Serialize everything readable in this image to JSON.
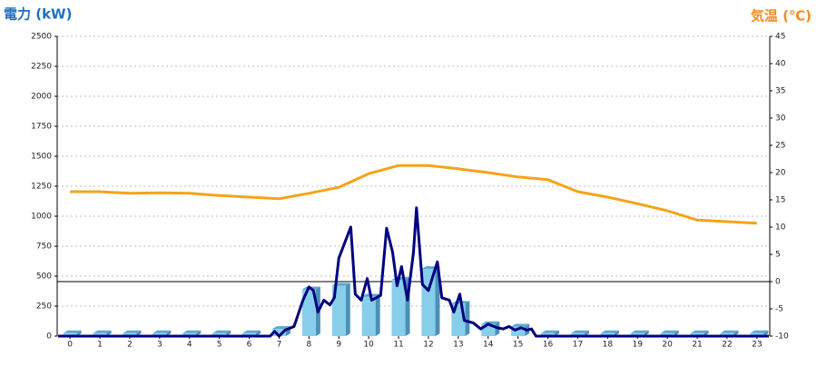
{
  "chart_data": {
    "type": "bar_line",
    "title": "電力 (kW)",
    "y2_title": "気温 (℃)",
    "x": [
      0,
      1,
      2,
      3,
      4,
      5,
      6,
      7,
      8,
      9,
      10,
      11,
      12,
      13,
      14,
      15,
      16,
      17,
      18,
      19,
      20,
      21,
      22,
      23
    ],
    "xlim": [
      -0.43,
      23.43
    ],
    "xticks": [
      0,
      1,
      2,
      3,
      4,
      5,
      6,
      7,
      8,
      9,
      10,
      11,
      12,
      13,
      14,
      15,
      16,
      17,
      18,
      19,
      20,
      21,
      22,
      23
    ],
    "ylim": [
      0,
      2500
    ],
    "yticks": [
      0,
      250,
      500,
      750,
      1000,
      1250,
      1500,
      1750,
      2000,
      2250,
      2500
    ],
    "y2lim": [
      -10,
      45
    ],
    "y2ticks": [
      -10,
      -5,
      0,
      5,
      10,
      15,
      20,
      25,
      30,
      35,
      40,
      45
    ],
    "grid": true,
    "series": [
      {
        "kind": "bar",
        "color": "#87ceeb",
        "values": [
          25,
          25,
          25,
          25,
          25,
          25,
          25,
          60,
          390,
          420,
          330,
          470,
          560,
          270,
          100,
          80,
          25,
          25,
          25,
          25,
          25,
          25,
          25,
          25
        ]
      },
      {
        "kind": "line",
        "color": "#000080",
        "x": [
          -0.4,
          6.7,
          6.85,
          7.0,
          7.2,
          7.5,
          7.8,
          8.0,
          8.15,
          8.3,
          8.5,
          8.7,
          8.85,
          9.0,
          9.2,
          9.4,
          9.55,
          9.75,
          9.95,
          10.1,
          10.4,
          10.6,
          10.8,
          10.95,
          11.1,
          11.3,
          11.5,
          11.6,
          11.8,
          12.0,
          12.3,
          12.45,
          12.7,
          12.85,
          13.05,
          13.2,
          13.5,
          13.75,
          14.0,
          14.3,
          14.5,
          14.7,
          14.9,
          15.1,
          15.3,
          15.45,
          15.6,
          23.4
        ],
        "values": [
          0,
          0,
          40,
          0,
          50,
          80,
          300,
          410,
          380,
          200,
          300,
          260,
          320,
          650,
          780,
          910,
          350,
          300,
          480,
          300,
          340,
          900,
          700,
          420,
          580,
          300,
          700,
          1070,
          430,
          380,
          620,
          320,
          300,
          200,
          350,
          130,
          110,
          60,
          100,
          70,
          60,
          80,
          50,
          70,
          50,
          60,
          0,
          0
        ]
      },
      {
        "kind": "line",
        "axis": "y2",
        "color": "#f5a31a",
        "values": [
          16.5,
          16.5,
          16.2,
          16.3,
          16.2,
          15.8,
          15.5,
          15.2,
          16.2,
          17.3,
          19.8,
          21.3,
          21.3,
          20.7,
          20.0,
          19.2,
          18.7,
          16.5,
          15.5,
          14.3,
          13.0,
          11.3,
          11.0,
          10.7
        ]
      }
    ]
  }
}
